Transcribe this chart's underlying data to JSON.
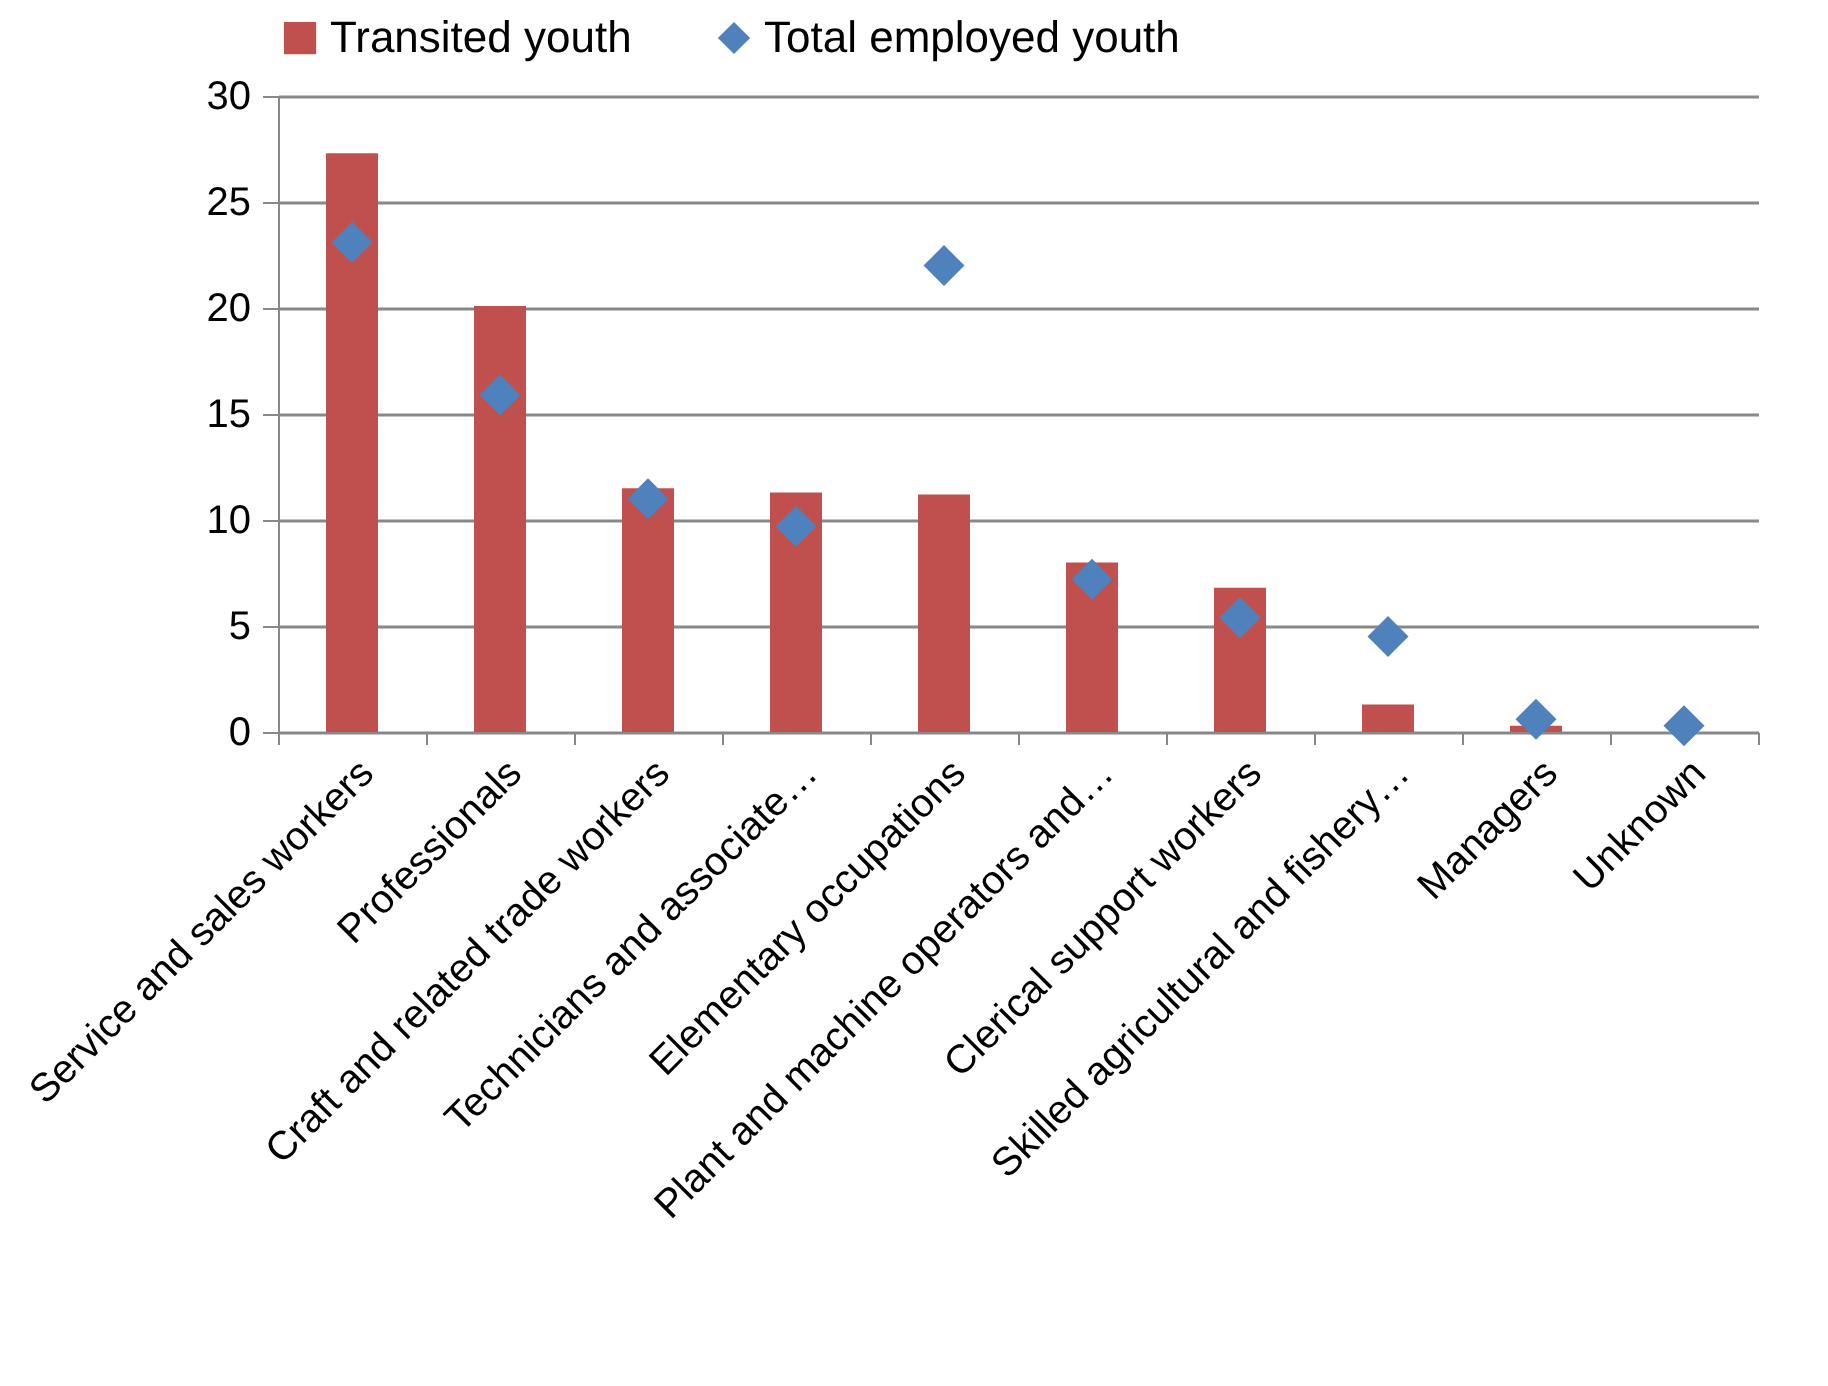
{
  "chart_data": {
    "type": "bar",
    "categories": [
      "Service and sales workers",
      "Professionals",
      "Craft and related trade workers",
      "Technicians and associate…",
      "Elementary occupations",
      "Plant and machine operators and…",
      "Clerical support workers",
      "Skilled agricultural and fishery…",
      "Managers",
      "Unknown"
    ],
    "series": [
      {
        "name": "Transited youth",
        "color": "#c0504d",
        "values": [
          27.3,
          20.1,
          11.5,
          11.3,
          11.2,
          8.0,
          6.8,
          1.3,
          0.3,
          0
        ]
      },
      {
        "name": "Total employed youth",
        "type": "scatter",
        "color": "#4f81bd",
        "values": [
          23.1,
          15.9,
          11.0,
          9.7,
          22.0,
          7.2,
          5.4,
          4.5,
          0.6,
          0.3
        ]
      }
    ],
    "marker": "diamond",
    "ylim": [
      0,
      30
    ],
    "yticks": [
      0,
      5,
      10,
      15,
      20,
      25,
      30
    ],
    "grid": "y",
    "legend": "top"
  }
}
